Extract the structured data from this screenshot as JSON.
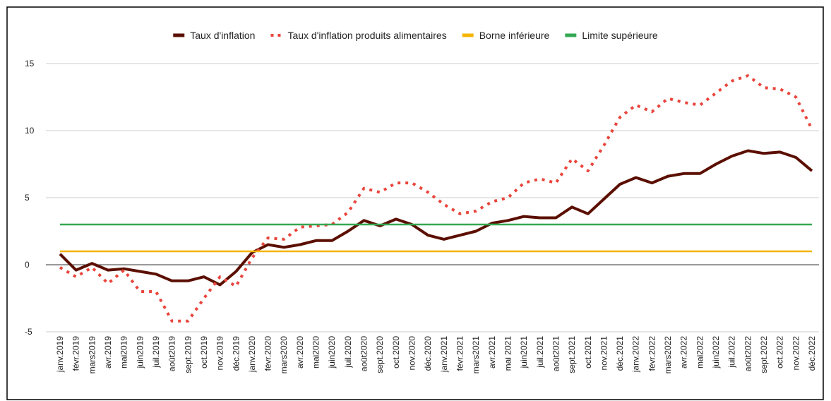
{
  "chart_data": {
    "type": "line",
    "categories": [
      "janv.2019",
      "févr.2019",
      "mars2019",
      "avr.2019",
      "mai2019",
      "juin2019",
      "juil.2019",
      "août2019",
      "sept.2019",
      "oct.2019",
      "nov.2019",
      "déc.2019",
      "janv.2020",
      "févr.2020",
      "mars2020",
      "avr.2020",
      "mai2020",
      "juin2020",
      "juil.2020",
      "août2020",
      "sept.2020",
      "oct.2020",
      "nov.2020",
      "déc.2020",
      "janv.2021",
      "févr.2021",
      "mars2021",
      "avr.2021",
      "mai 2021",
      "juin2021",
      "juil.2021",
      "août2021",
      "sept.2021",
      "oct.2021",
      "nov.2021",
      "déc.2021",
      "janv.2022",
      "févr.2022",
      "mars2022",
      "avr.2022",
      "mai2022",
      "juin2022",
      "juil.2022",
      "août2022",
      "sept.2022",
      "oct.2022",
      "nov.2022",
      "déc.2022"
    ],
    "series": [
      {
        "name": "Taux d'inflation",
        "color": "#5b0f00",
        "dash": false,
        "values": [
          0.8,
          -0.4,
          0.1,
          -0.4,
          -0.3,
          -0.5,
          -0.7,
          -1.2,
          -1.2,
          -0.9,
          -1.5,
          -0.5,
          0.9,
          1.5,
          1.3,
          1.5,
          1.8,
          1.8,
          2.5,
          3.3,
          2.9,
          3.4,
          3.0,
          2.2,
          1.9,
          2.2,
          2.5,
          3.1,
          3.3,
          3.6,
          3.5,
          3.5,
          4.3,
          3.8,
          4.9,
          6.0,
          6.5,
          6.1,
          6.6,
          6.8,
          6.8,
          7.5,
          8.1,
          8.5,
          8.3,
          8.4,
          8.0,
          7.0
        ]
      },
      {
        "name": "Taux d'inflation produits alimentaires",
        "color": "#e8453c",
        "dash": true,
        "values": [
          -0.2,
          -0.9,
          -0.2,
          -1.4,
          -0.4,
          -2.0,
          -2.0,
          -4.2,
          -4.2,
          -2.5,
          -0.9,
          -1.6,
          0.5,
          2.0,
          1.9,
          2.8,
          2.9,
          3.0,
          3.9,
          5.7,
          5.4,
          6.1,
          6.1,
          5.4,
          4.5,
          3.8,
          4.0,
          4.7,
          5.0,
          6.1,
          6.4,
          6.1,
          7.9,
          7.0,
          8.9,
          11.0,
          11.9,
          11.4,
          12.4,
          12.1,
          11.9,
          12.8,
          13.7,
          14.1,
          13.2,
          13.1,
          12.5,
          10.1
        ]
      },
      {
        "name": "Borne inférieure",
        "color": "#f4b400",
        "dash": false,
        "values": [
          1,
          1,
          1,
          1,
          1,
          1,
          1,
          1,
          1,
          1,
          1,
          1,
          1,
          1,
          1,
          1,
          1,
          1,
          1,
          1,
          1,
          1,
          1,
          1,
          1,
          1,
          1,
          1,
          1,
          1,
          1,
          1,
          1,
          1,
          1,
          1,
          1,
          1,
          1,
          1,
          1,
          1,
          1,
          1,
          1,
          1,
          1,
          1
        ]
      },
      {
        "name": "Limite supérieure",
        "color": "#34a853",
        "dash": false,
        "values": [
          3,
          3,
          3,
          3,
          3,
          3,
          3,
          3,
          3,
          3,
          3,
          3,
          3,
          3,
          3,
          3,
          3,
          3,
          3,
          3,
          3,
          3,
          3,
          3,
          3,
          3,
          3,
          3,
          3,
          3,
          3,
          3,
          3,
          3,
          3,
          3,
          3,
          3,
          3,
          3,
          3,
          3,
          3,
          3,
          3,
          3,
          3,
          3
        ]
      }
    ],
    "ylim": [
      -5,
      15
    ],
    "yticks": [
      -5,
      0,
      5,
      10,
      15
    ],
    "grid": true,
    "legend": "top"
  }
}
